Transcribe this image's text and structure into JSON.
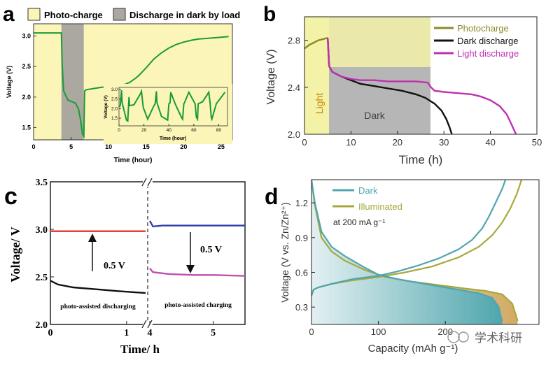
{
  "chart_data": [
    {
      "panel": "a",
      "type": "line",
      "legend": [
        "Photo-charge",
        "Discharge in dark by load"
      ],
      "xlabel": "Time (hour)",
      "ylabel": "Voltage (V)",
      "xlim": [
        0,
        26.5
      ],
      "ylim": [
        1.3,
        3.2
      ],
      "xticks": [
        "0",
        "5",
        "10",
        "15",
        "20",
        "25"
      ],
      "yticks": [
        "1.5",
        "2.0",
        "2.5",
        "3.0"
      ],
      "shaded": [
        {
          "from": 0,
          "to": 3.7,
          "color": "#fbf6b8",
          "label": "Photo-charge"
        },
        {
          "from": 3.7,
          "to": 6.7,
          "color": "#aaa89f",
          "label": "Discharge in dark by load"
        },
        {
          "from": 6.7,
          "to": 26.5,
          "color": "#fbf6b8"
        }
      ],
      "series": [
        {
          "color": "#1a9a3a",
          "x": [
            0,
            3.7,
            3.8,
            4.0,
            4.3,
            4.6,
            5.0,
            5.6,
            6.0,
            6.3,
            6.5,
            6.7,
            6.8,
            7.0,
            8.0,
            9.0,
            10.0,
            11.0,
            12.0,
            12.8,
            13.5,
            14.0,
            15.0,
            16.0,
            17.0,
            18.0,
            19.0,
            20.0,
            21.0,
            22.0,
            23.0,
            24.0,
            25.0,
            26.0
          ],
          "y": [
            3.05,
            3.05,
            2.55,
            2.1,
            2.02,
            1.95,
            1.93,
            1.9,
            1.8,
            1.6,
            1.4,
            1.36,
            2.1,
            2.12,
            2.14,
            2.16,
            2.17,
            2.18,
            2.2,
            2.24,
            2.3,
            2.35,
            2.48,
            2.62,
            2.72,
            2.8,
            2.86,
            2.9,
            2.93,
            2.95,
            2.96,
            2.97,
            2.98,
            2.99
          ]
        }
      ],
      "inset": {
        "xlabel": "Time (hour)",
        "ylabel": "Voltage (V)",
        "xlim": [
          0,
          87
        ],
        "ylim": [
          1.1,
          3.1
        ],
        "xticks": [
          "0",
          "20",
          "40",
          "60",
          "80"
        ],
        "yticks": [
          "1.5",
          "2.0",
          "2.5",
          "3.0"
        ],
        "x": [
          0,
          1,
          2,
          2.5,
          6,
          7,
          8,
          8.5,
          12,
          17,
          18,
          19,
          19.5,
          23,
          28,
          29,
          30,
          30.5,
          34,
          39,
          40,
          41,
          41.5,
          45,
          50,
          51,
          52,
          52.5,
          56,
          61,
          62,
          63,
          63.5,
          67,
          72,
          73,
          74,
          74.5,
          78,
          85
        ],
        "y": [
          2.1,
          2.15,
          2.95,
          2.3,
          1.4,
          1.35,
          2.6,
          2.15,
          2.2,
          2.75,
          2.9,
          2.3,
          2.05,
          1.45,
          2.15,
          2.25,
          2.9,
          2.3,
          1.6,
          1.4,
          2.25,
          2.3,
          2.85,
          2.25,
          1.55,
          1.45,
          2.25,
          2.3,
          2.85,
          2.25,
          1.55,
          1.45,
          2.25,
          2.35,
          2.85,
          2.3,
          1.55,
          1.45,
          2.25,
          2.85
        ]
      }
    },
    {
      "panel": "b",
      "type": "line",
      "xlabel": "Time (h)",
      "ylabel": "Voltage (V)",
      "xlim": [
        0,
        50
      ],
      "ylim": [
        2.0,
        3.0
      ],
      "xticks": [
        "0",
        "10",
        "20",
        "30",
        "40",
        "50"
      ],
      "yticks": [
        "2.0",
        "2.4",
        "2.8"
      ],
      "annotations": [
        "Light",
        "Dark"
      ],
      "series": [
        {
          "name": "Photocharge",
          "color": "#8a8a2a",
          "x": [
            0,
            1,
            2,
            3,
            4,
            5
          ],
          "y": [
            2.73,
            2.76,
            2.78,
            2.8,
            2.81,
            2.82
          ]
        },
        {
          "name": "Dark discharge",
          "color": "#111111",
          "x": [
            5,
            5.3,
            6,
            7,
            8,
            10,
            12,
            15,
            18,
            21,
            24,
            26,
            28,
            29.5,
            30.5,
            31.2,
            31.7
          ],
          "y": [
            2.82,
            2.58,
            2.53,
            2.51,
            2.49,
            2.46,
            2.43,
            2.41,
            2.39,
            2.37,
            2.34,
            2.31,
            2.26,
            2.2,
            2.13,
            2.06,
            2.0
          ]
        },
        {
          "name": "Light discharge",
          "color": "#c030b0",
          "x": [
            5,
            5.3,
            6,
            7,
            8,
            10,
            12,
            15,
            18,
            21,
            24,
            26.5,
            27.2,
            28,
            30,
            33,
            36,
            38,
            40,
            42,
            43.5,
            44.6,
            45.5
          ],
          "y": [
            2.82,
            2.58,
            2.53,
            2.51,
            2.49,
            2.47,
            2.46,
            2.46,
            2.45,
            2.45,
            2.45,
            2.44,
            2.4,
            2.37,
            2.36,
            2.35,
            2.34,
            2.32,
            2.29,
            2.24,
            2.17,
            2.08,
            2.0
          ]
        }
      ]
    },
    {
      "panel": "c",
      "type": "line",
      "xlabel": "Time/ h",
      "ylabel": "Voltage/ V",
      "ylim": [
        2.0,
        3.5
      ],
      "xticks": [
        "0",
        "1",
        "4",
        "5"
      ],
      "yticks": [
        "2.0",
        "2.5",
        "3.0",
        "3.5"
      ],
      "annotations": [
        "0.5 V",
        "0.5 V",
        "photo-assisted discharging",
        "photo-assisted charging"
      ],
      "series": [
        {
          "segment": "left",
          "color": "#e53030",
          "x": [
            0,
            1.25
          ],
          "y": [
            2.98,
            2.98
          ]
        },
        {
          "segment": "left",
          "color": "#111111",
          "x": [
            0,
            0.1,
            0.3,
            0.6,
            0.9,
            1.25
          ],
          "y": [
            2.46,
            2.42,
            2.39,
            2.37,
            2.35,
            2.33
          ]
        },
        {
          "segment": "right",
          "color": "#2f3fa8",
          "x": [
            4,
            4.05,
            4.2,
            4.5,
            5,
            5.5
          ],
          "y": [
            3.09,
            3.03,
            3.04,
            3.04,
            3.04,
            3.04
          ]
        },
        {
          "segment": "right",
          "color": "#c04fb0",
          "x": [
            4,
            4.05,
            4.3,
            4.7,
            5,
            5.5
          ],
          "y": [
            2.59,
            2.55,
            2.53,
            2.52,
            2.52,
            2.51
          ]
        }
      ]
    },
    {
      "panel": "d",
      "type": "area",
      "xlabel": "Capacity (mAh g⁻¹)",
      "ylabel": "Voltage (V vs. Zn/Zn²⁺)",
      "xlim": [
        0,
        340
      ],
      "ylim": [
        0.15,
        1.4
      ],
      "xticks": [
        "0",
        "100",
        "200"
      ],
      "yticks": [
        "0.3",
        "0.6",
        "0.9",
        "1.2"
      ],
      "annotations": [
        "at 200 mA g⁻¹"
      ],
      "series": [
        {
          "name": "Dark",
          "color": "#4fa6ad",
          "discharge": {
            "x": [
              0,
              5,
              15,
              30,
              50,
              80,
              100,
              130,
              160,
              190,
              220,
              250,
              270,
              280,
              283,
              285
            ],
            "y": [
              1.4,
              1.2,
              0.95,
              0.82,
              0.74,
              0.64,
              0.58,
              0.54,
              0.51,
              0.48,
              0.45,
              0.42,
              0.38,
              0.3,
              0.22,
              0.18
            ]
          },
          "charge": {
            "x": [
              0,
              3,
              10,
              30,
              60,
              100,
              130,
              160,
              190,
              220,
              240,
              255,
              265,
              275,
              285,
              290
            ],
            "y": [
              0.4,
              0.45,
              0.47,
              0.5,
              0.54,
              0.57,
              0.61,
              0.66,
              0.72,
              0.8,
              0.88,
              0.98,
              1.08,
              1.2,
              1.32,
              1.4
            ]
          }
        },
        {
          "name": "Illuminated",
          "color": "#a8a83a",
          "discharge": {
            "x": [
              0,
              5,
              15,
              30,
              50,
              80,
              110,
              150,
              190,
              230,
              260,
              285,
              300,
              305,
              308
            ],
            "y": [
              1.4,
              1.18,
              0.9,
              0.78,
              0.7,
              0.62,
              0.56,
              0.52,
              0.49,
              0.46,
              0.44,
              0.41,
              0.33,
              0.24,
              0.18
            ]
          },
          "charge": {
            "x": [
              0,
              3,
              10,
              30,
              60,
              100,
              140,
              180,
              220,
              250,
              270,
              285,
              297,
              307,
              314
            ],
            "y": [
              0.4,
              0.45,
              0.47,
              0.5,
              0.53,
              0.56,
              0.6,
              0.65,
              0.73,
              0.82,
              0.92,
              1.03,
              1.15,
              1.28,
              1.4
            ]
          }
        }
      ]
    }
  ],
  "panels": {
    "a": {
      "letter": "a",
      "legend1": "Photo-charge",
      "legend2": "Discharge in dark by load",
      "xlabel": "Time (hour)",
      "ylabel": "Voltage (V)",
      "inset_xlabel": "Time (hour)",
      "inset_ylabel": "Voltage (V)"
    },
    "b": {
      "letter": "b",
      "xlabel": "Time (h)",
      "ylabel": "Voltage (V)",
      "legend": [
        "Photocharge",
        "Dark discharge",
        "Light discharge"
      ],
      "light": "Light",
      "dark": "Dark"
    },
    "c": {
      "letter": "c",
      "xlabel": "Time/ h",
      "ylabel": "Voltage/ V",
      "dv1": "0.5 V",
      "dv2": "0.5 V",
      "label_left": "photo-assisted discharging",
      "label_right": "photo-assisted charging"
    },
    "d": {
      "letter": "d",
      "xlabel": "Capacity (mAh g⁻¹)",
      "ylabel": "Voltage (V vs. Zn/Zn²⁺)",
      "legend": [
        "Dark",
        "Illuminated"
      ],
      "note": "at 200 mA g⁻¹"
    }
  },
  "watermark": "学术科研"
}
